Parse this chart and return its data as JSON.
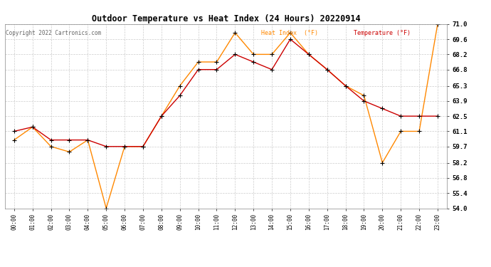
{
  "title": "Outdoor Temperature vs Heat Index (24 Hours) 20220914",
  "copyright": "Copyright 2022 Cartronics.com",
  "legend_heat": "Heat Index  (°F)",
  "legend_temp": "Temperature (°F)",
  "hours": [
    "00:00",
    "01:00",
    "02:00",
    "03:00",
    "04:00",
    "05:00",
    "06:00",
    "07:00",
    "08:00",
    "09:00",
    "10:00",
    "11:00",
    "12:00",
    "13:00",
    "14:00",
    "15:00",
    "16:00",
    "17:00",
    "18:00",
    "19:00",
    "20:00",
    "21:00",
    "22:00",
    "23:00"
  ],
  "temperature": [
    61.1,
    61.5,
    60.3,
    60.3,
    60.3,
    59.7,
    59.7,
    59.7,
    62.5,
    64.4,
    66.8,
    66.8,
    68.2,
    67.5,
    66.8,
    69.6,
    68.2,
    66.8,
    65.3,
    63.9,
    63.2,
    62.5,
    62.5,
    62.5
  ],
  "heat_index": [
    60.3,
    61.5,
    59.7,
    59.2,
    60.3,
    54.0,
    59.7,
    59.7,
    62.5,
    65.3,
    67.5,
    67.5,
    70.2,
    68.2,
    68.2,
    70.2,
    68.2,
    66.8,
    65.3,
    64.4,
    58.2,
    61.1,
    61.1,
    71.0
  ],
  "temp_color": "#cc0000",
  "heat_color": "#ff8800",
  "marker_color": "#000000",
  "bg_color": "#ffffff",
  "grid_color": "#cccccc",
  "ylim_min": 54.0,
  "ylim_max": 71.0,
  "yticks": [
    54.0,
    55.4,
    56.8,
    58.2,
    59.7,
    61.1,
    62.5,
    63.9,
    65.3,
    66.8,
    68.2,
    69.6,
    71.0
  ]
}
